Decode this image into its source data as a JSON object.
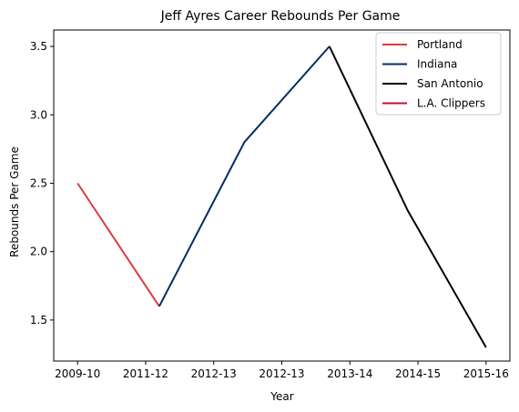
{
  "chart_data": {
    "type": "line",
    "title": "Jeff Ayres Career Rebounds Per Game",
    "xlabel": "Year",
    "ylabel": "Rebounds Per Game",
    "x_ticks": [
      "2009-10",
      "2011-12",
      "2012-13",
      "2012-13",
      "2013-14",
      "2014-15",
      "2015-16"
    ],
    "xlim": [
      -0.35,
      6.35
    ],
    "ylim": [
      1.2,
      3.62
    ],
    "y_ticks": [
      1.5,
      2.0,
      2.5,
      3.0,
      3.5
    ],
    "grid": false,
    "legend_position": "upper-right",
    "series": [
      {
        "name": "Portland",
        "color": "#E03A3E",
        "points": [
          [
            0,
            2.5
          ],
          [
            1.2,
            1.6
          ]
        ]
      },
      {
        "name": "Indiana",
        "color": "#002D62",
        "points": [
          [
            1.2,
            1.6
          ],
          [
            2.45,
            2.8
          ],
          [
            3.7,
            3.5
          ]
        ]
      },
      {
        "name": "San Antonio",
        "color": "#000000",
        "points": [
          [
            3.7,
            3.5
          ],
          [
            4.85,
            2.3
          ],
          [
            6.0,
            1.3
          ]
        ]
      },
      {
        "name": "L.A. Clippers",
        "color": "#C8102E",
        "points": []
      }
    ]
  }
}
